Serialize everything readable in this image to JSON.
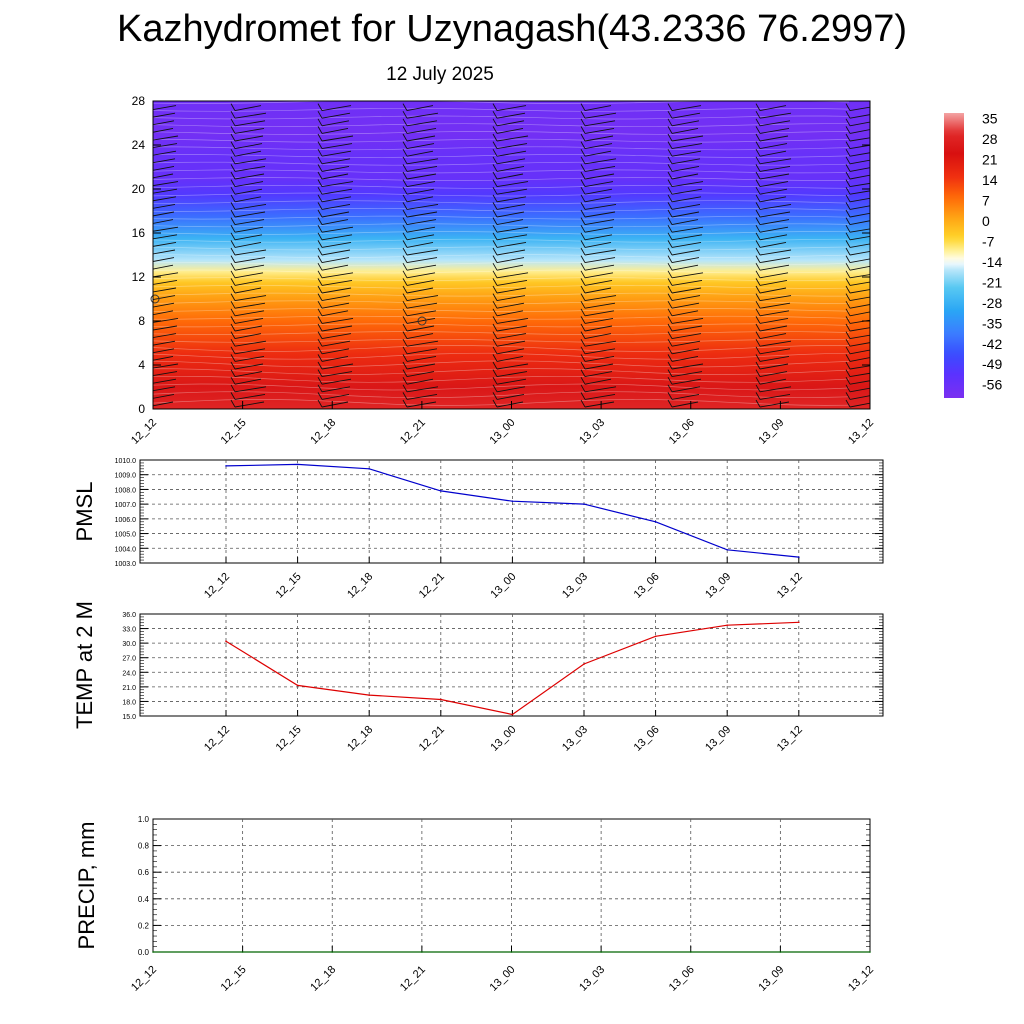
{
  "page": {
    "title": "Kazhydromet for Uzynagash(43.2336 76.2997)",
    "subtitle": "12 July 2025"
  },
  "chart_data": [
    {
      "type": "heatmap",
      "description_variable": "temperature cross-section",
      "x_ticks": [
        "12_12",
        "12_15",
        "12_18",
        "12_21",
        "13_00",
        "13_03",
        "13_06",
        "13_09",
        "13_12"
      ],
      "y_ticks": [
        0,
        4,
        8,
        12,
        16,
        20,
        24,
        28
      ],
      "ylim": [
        0,
        28
      ],
      "colorbar_ticks": [
        35,
        28,
        21,
        14,
        7,
        0,
        -7,
        -14,
        -21,
        -28,
        -35,
        -42,
        -49,
        -56
      ],
      "colorbar_range": [
        -60,
        38
      ],
      "profile_by_height": [
        {
          "h": 0,
          "t": 30
        },
        {
          "h": 2,
          "t": 26
        },
        {
          "h": 5,
          "t": 17
        },
        {
          "h": 8,
          "t": 9
        },
        {
          "h": 10,
          "t": 3
        },
        {
          "h": 11.5,
          "t": -3
        },
        {
          "h": 12.5,
          "t": -9
        },
        {
          "h": 13.5,
          "t": -16
        },
        {
          "h": 15.5,
          "t": -27
        },
        {
          "h": 17.5,
          "t": -40
        },
        {
          "h": 19.5,
          "t": -50
        },
        {
          "h": 21,
          "t": -55
        },
        {
          "h": 23,
          "t": -55
        },
        {
          "h": 25,
          "t": -58
        },
        {
          "h": 28,
          "t": -57
        }
      ]
    },
    {
      "type": "line",
      "ylabel": "PMSL",
      "x": [
        "12_12",
        "12_15",
        "12_18",
        "12_21",
        "13_00",
        "13_03",
        "13_06",
        "13_09",
        "13_12"
      ],
      "values": [
        1009.6,
        1009.7,
        1009.4,
        1007.9,
        1007.2,
        1007.0,
        1005.8,
        1003.9,
        1003.4
      ],
      "ylim": [
        1003.0,
        1010.0
      ],
      "y_ticks": [
        "1010.0",
        "1009.0",
        "1008.0",
        "1007.0",
        "1006.0",
        "1005.0",
        "1004.0",
        "1003.0"
      ],
      "color": "#0000cc",
      "grid": true
    },
    {
      "type": "line",
      "ylabel": "TEMP at 2 M",
      "x": [
        "12_12",
        "12_15",
        "12_18",
        "12_21",
        "13_00",
        "13_03",
        "13_06",
        "13_09",
        "13_12"
      ],
      "values": [
        30.4,
        21.3,
        19.3,
        18.4,
        15.3,
        25.7,
        31.4,
        33.7,
        34.3
      ],
      "ylim": [
        15.0,
        36.0
      ],
      "y_ticks": [
        "36.0",
        "33.0",
        "30.0",
        "27.0",
        "24.0",
        "21.0",
        "18.0",
        "15.0"
      ],
      "color": "#dd0000",
      "grid": true
    },
    {
      "type": "line",
      "ylabel": "PRECIP, mm",
      "x": [
        "12_12",
        "12_15",
        "12_18",
        "12_21",
        "13_00",
        "13_03",
        "13_06",
        "13_09",
        "13_12"
      ],
      "values": [
        0,
        0,
        0,
        0,
        0,
        0,
        0,
        0,
        0
      ],
      "ylim": [
        0.0,
        1.0
      ],
      "y_ticks": [
        "1.0",
        "0.8",
        "0.6",
        "0.4",
        "0.2",
        "0.0"
      ],
      "color": "#006400",
      "grid": true
    }
  ]
}
